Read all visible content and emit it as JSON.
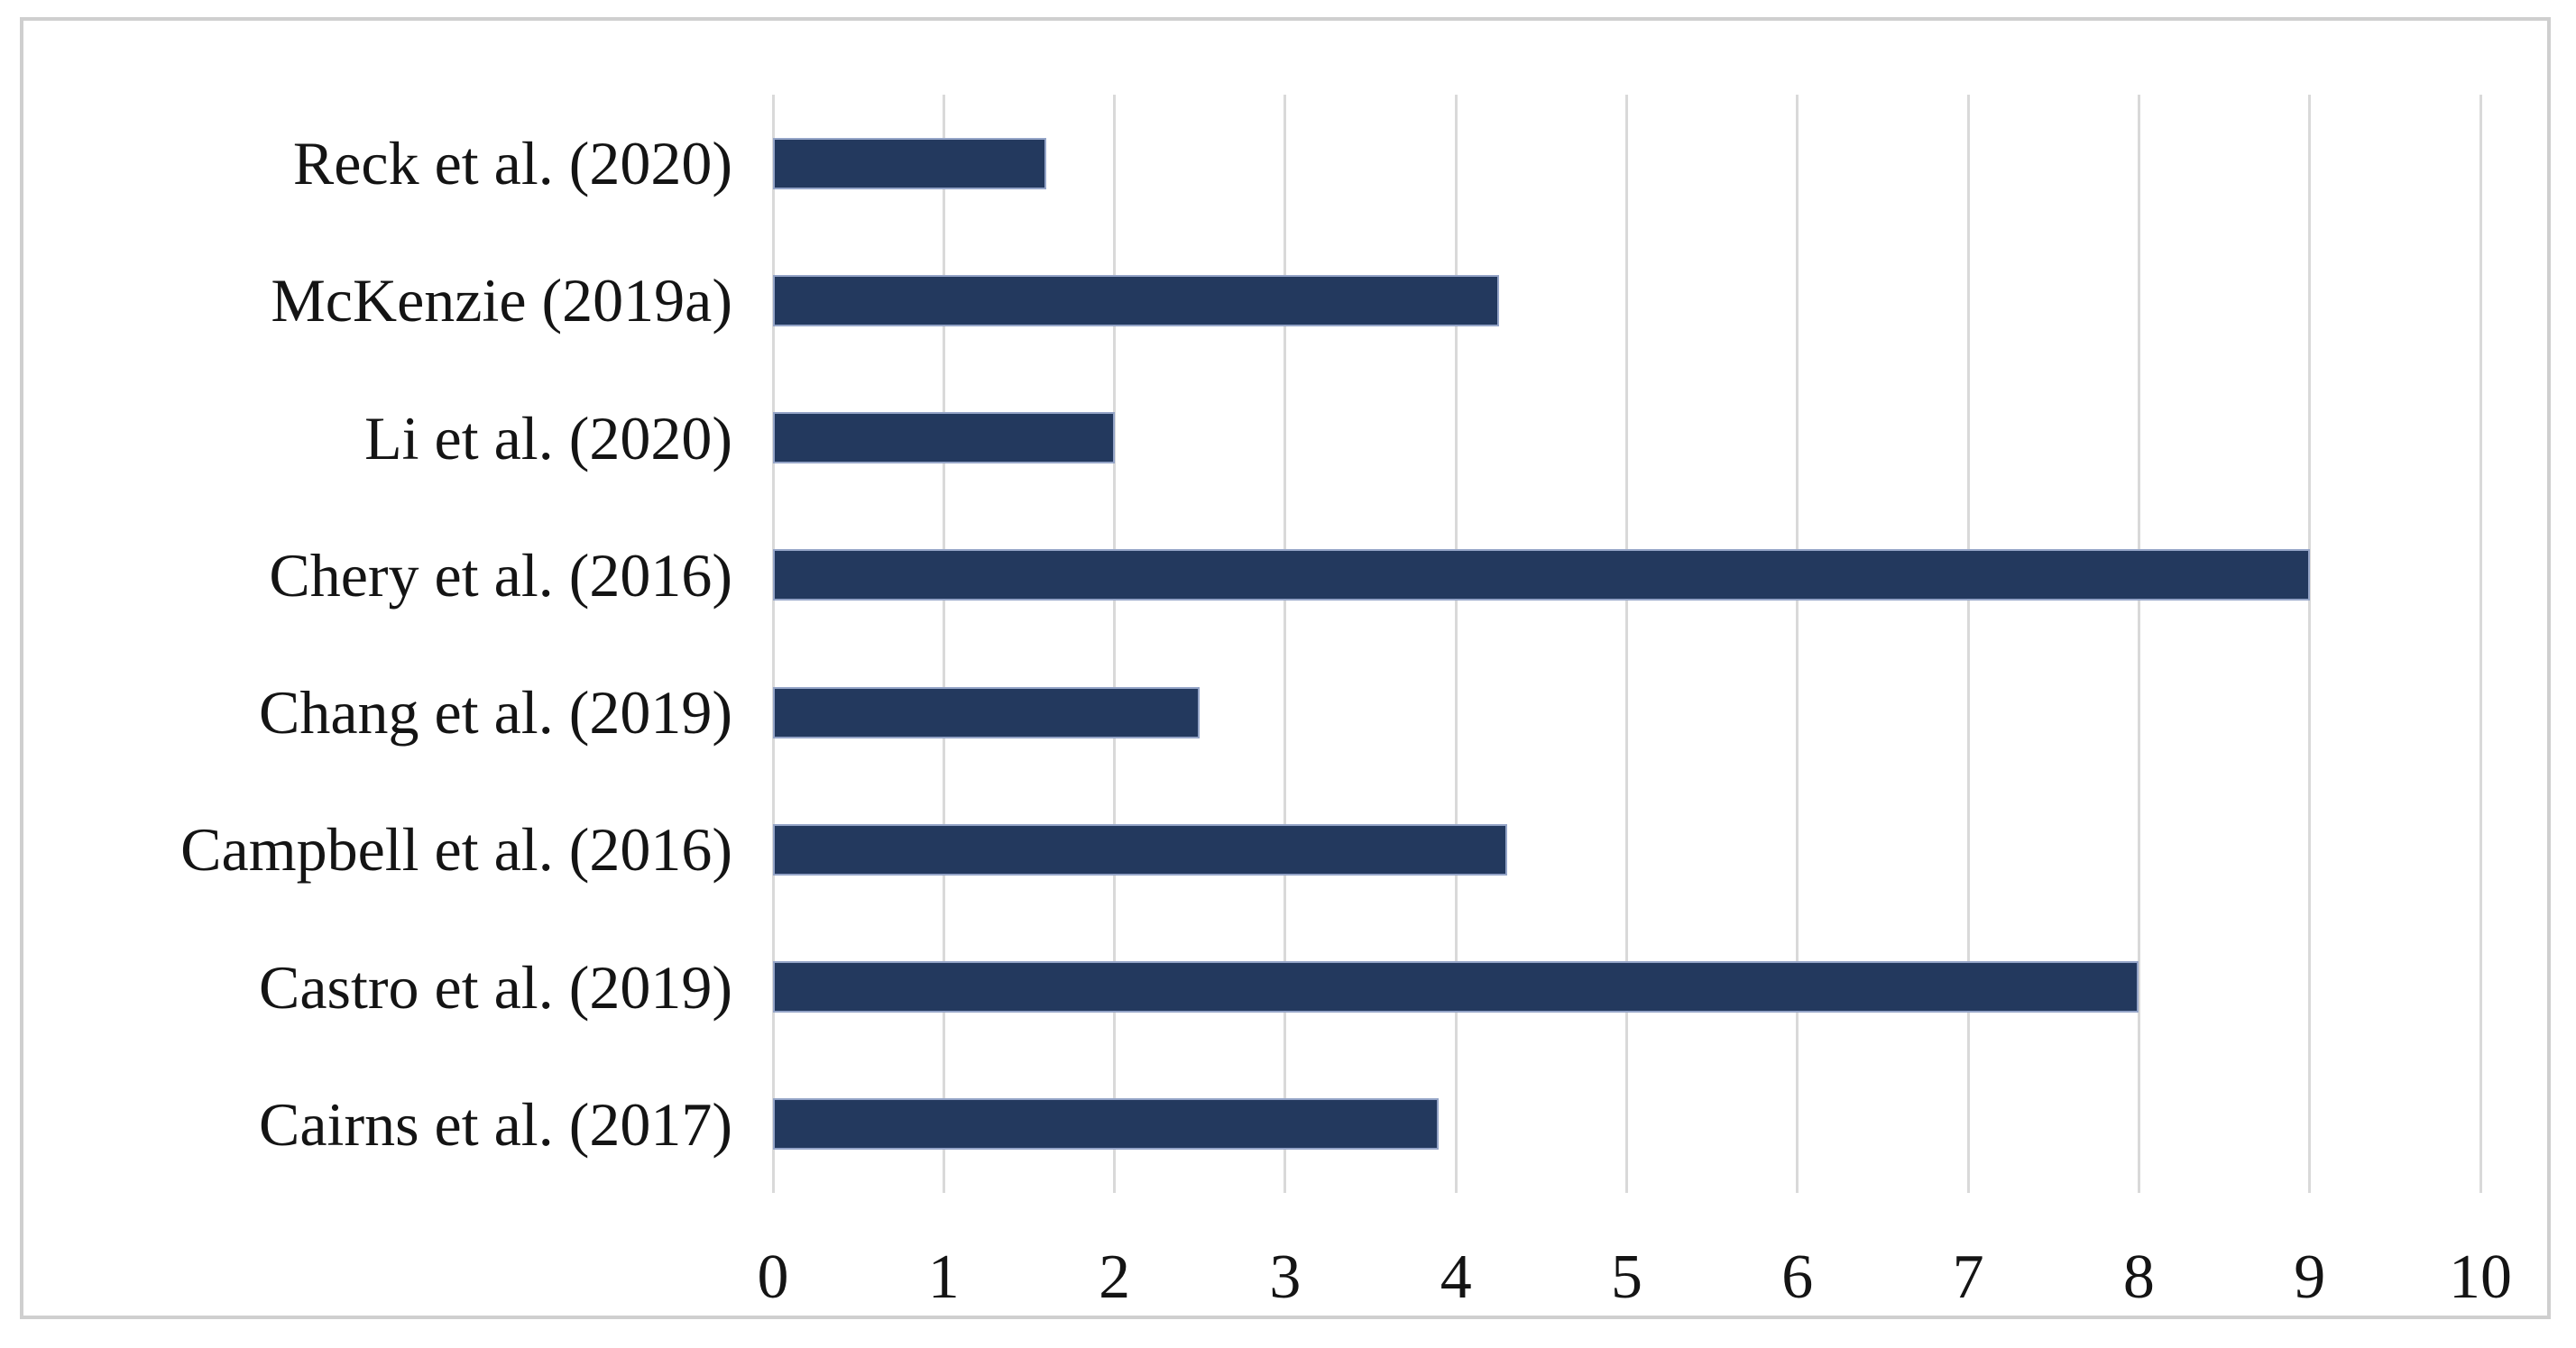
{
  "chart_data": {
    "type": "bar",
    "orientation": "horizontal",
    "title": "",
    "xlabel": "",
    "ylabel": "",
    "categories": [
      "Reck et al. (2020)",
      "McKenzie (2019a)",
      "Li et al. (2020)",
      "Chery et al. (2016)",
      "Chang et al. (2019)",
      "Campbell et al. (2016)",
      "Castro et al. (2019)",
      "Cairns et al. (2017)"
    ],
    "values": [
      1.6,
      4.25,
      2,
      9,
      2.5,
      4.3,
      8,
      3.9
    ],
    "xlim": [
      0,
      10
    ],
    "xticks": [
      0,
      1,
      2,
      3,
      4,
      5,
      6,
      7,
      8,
      9,
      10
    ],
    "grid": "vertical-only",
    "legend_position": "none",
    "colors": {
      "bar_fill": "#23395e",
      "bar_edge": "#94a4c7",
      "gridline": "#d9d9d9",
      "frame_border": "#cfcfcf",
      "text": "#141414",
      "background": "#ffffff"
    }
  }
}
